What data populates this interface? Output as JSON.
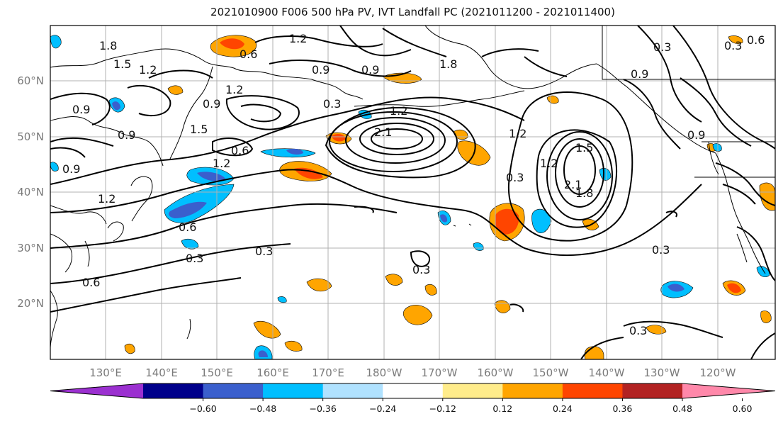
{
  "title": "2021010900 F006 500 hPa PV, IVT Landfall PC (2021011200 - 2021011400)",
  "lat_labels": [
    "60°N",
    "50°N",
    "40°N",
    "30°N",
    "20°N"
  ],
  "lon_labels": [
    "130°E",
    "140°E",
    "150°E",
    "160°E",
    "170°E",
    "180°W",
    "170°W",
    "160°W",
    "150°W",
    "140°W",
    "130°W",
    "120°W"
  ],
  "colorbar": {
    "colors": [
      "#9b30d0",
      "#00008b",
      "#3a5fcd",
      "#00bfff",
      "#b0e2ff",
      "#ffffff",
      "#ffec8b",
      "#ffa500",
      "#ff4500",
      "#b22222",
      "#ff88aa"
    ],
    "ticks": [
      "−0.60",
      "−0.48",
      "−0.36",
      "−0.24",
      "−0.12",
      "0.12",
      "0.24",
      "0.36",
      "0.48",
      "0.60"
    ]
  },
  "contour_labels": [
    "1.8",
    "1.5",
    "1.2",
    "0.9",
    "0.6",
    "0.3",
    "2.1"
  ],
  "colors": {
    "land_line": "#000000",
    "grid": "#b0b0b0",
    "frame": "#000000"
  }
}
